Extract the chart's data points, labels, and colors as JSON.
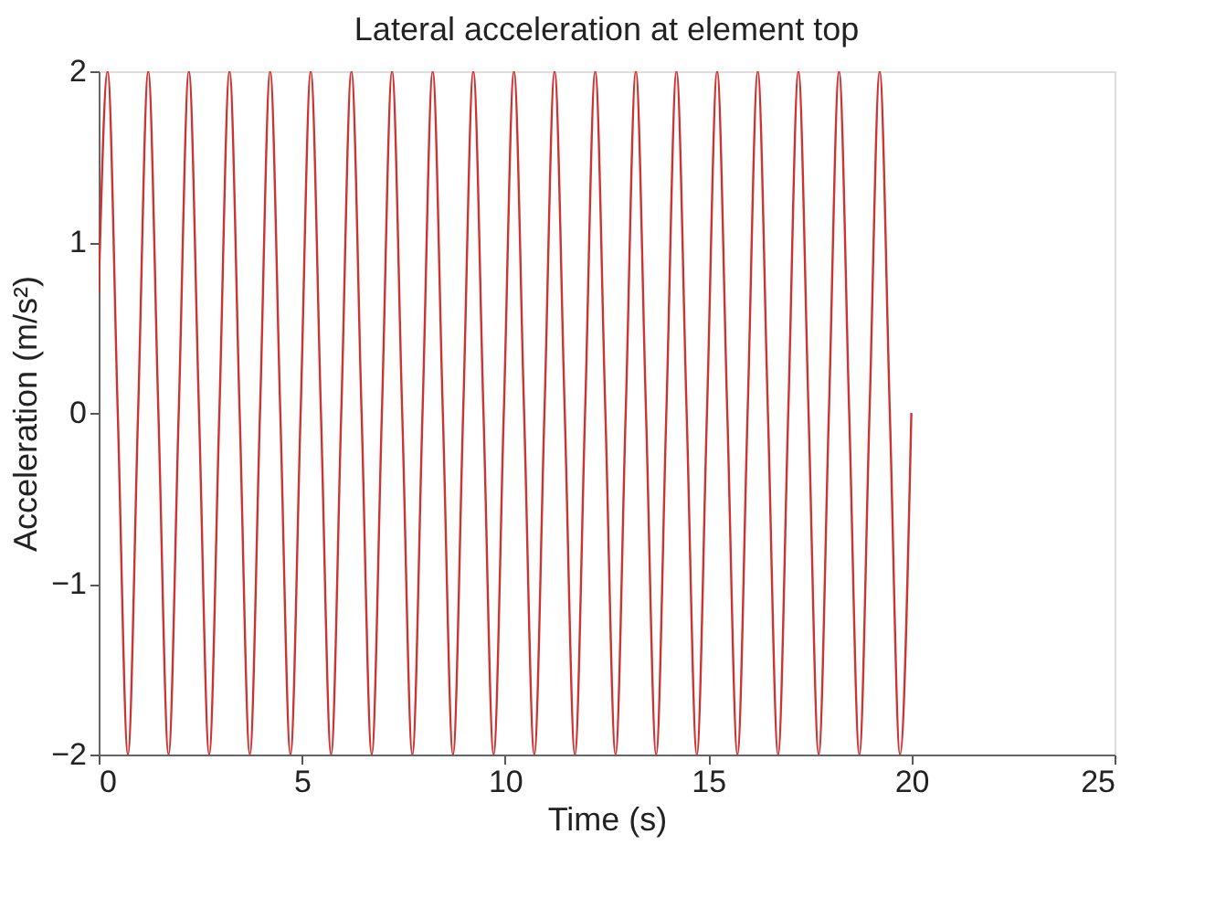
{
  "chart_data": {
    "type": "line",
    "title": "Lateral acceleration at element top",
    "xlabel": "Time (s)",
    "ylabel": "Acceleration (m/s²)",
    "series": [
      {
        "color": "#cc3333",
        "x": [
          0,
          0.22,
          0.47,
          0.72,
          0.97,
          1.22,
          1.47,
          1.72,
          1.97,
          2.22,
          2.47,
          2.72,
          2.97,
          3.22,
          3.47,
          3.72,
          3.97,
          4.22,
          4.47,
          4.72,
          4.97,
          5.22,
          5.47,
          5.72,
          5.97,
          6.22,
          6.47,
          6.72,
          6.97,
          7.22,
          7.47,
          7.72,
          7.97,
          8.22,
          8.47,
          8.72,
          8.97,
          9.22,
          9.47,
          9.72,
          9.97,
          10.22,
          10.47,
          10.72,
          10.97,
          11.22,
          11.47,
          11.72,
          11.97,
          12.22,
          12.47,
          12.72,
          12.97,
          13.22,
          13.47,
          13.72,
          13.97,
          14.22,
          14.47,
          14.72,
          14.97,
          15.22,
          15.47,
          15.72,
          15.97,
          16.22,
          16.47,
          16.72,
          16.97,
          17.22,
          17.47,
          17.72,
          17.97,
          18.22,
          18.47,
          18.72,
          18.97,
          19.22,
          19.47,
          19.72,
          20
        ],
        "values": [
          0.7,
          2,
          0,
          -2,
          0,
          2,
          0,
          -2,
          0,
          2,
          0,
          -2,
          0,
          2,
          0,
          -2,
          0,
          2,
          0,
          -2,
          0,
          2,
          0,
          -2,
          0,
          2,
          0,
          -2,
          0,
          2,
          0,
          -2,
          0,
          2,
          0,
          -2,
          0,
          2,
          0,
          -2,
          0,
          2,
          0,
          -2,
          0,
          2,
          0,
          -2,
          0,
          2,
          0,
          -2,
          0,
          2,
          0,
          -2,
          0,
          2,
          0,
          -2,
          0,
          2,
          0,
          -2,
          0,
          2,
          0,
          -2,
          0,
          2,
          0,
          -2,
          0,
          2,
          0,
          -2,
          0,
          2,
          0,
          -2,
          0
        ]
      }
    ],
    "xlim": [
      0,
      25
    ],
    "xticks": [
      0,
      5,
      10,
      15,
      20,
      25
    ],
    "ylim": [
      -2,
      2
    ],
    "yticks": [
      -2,
      -1,
      0,
      1,
      2
    ],
    "grid": false,
    "marker": "none",
    "line_style": "solid"
  }
}
